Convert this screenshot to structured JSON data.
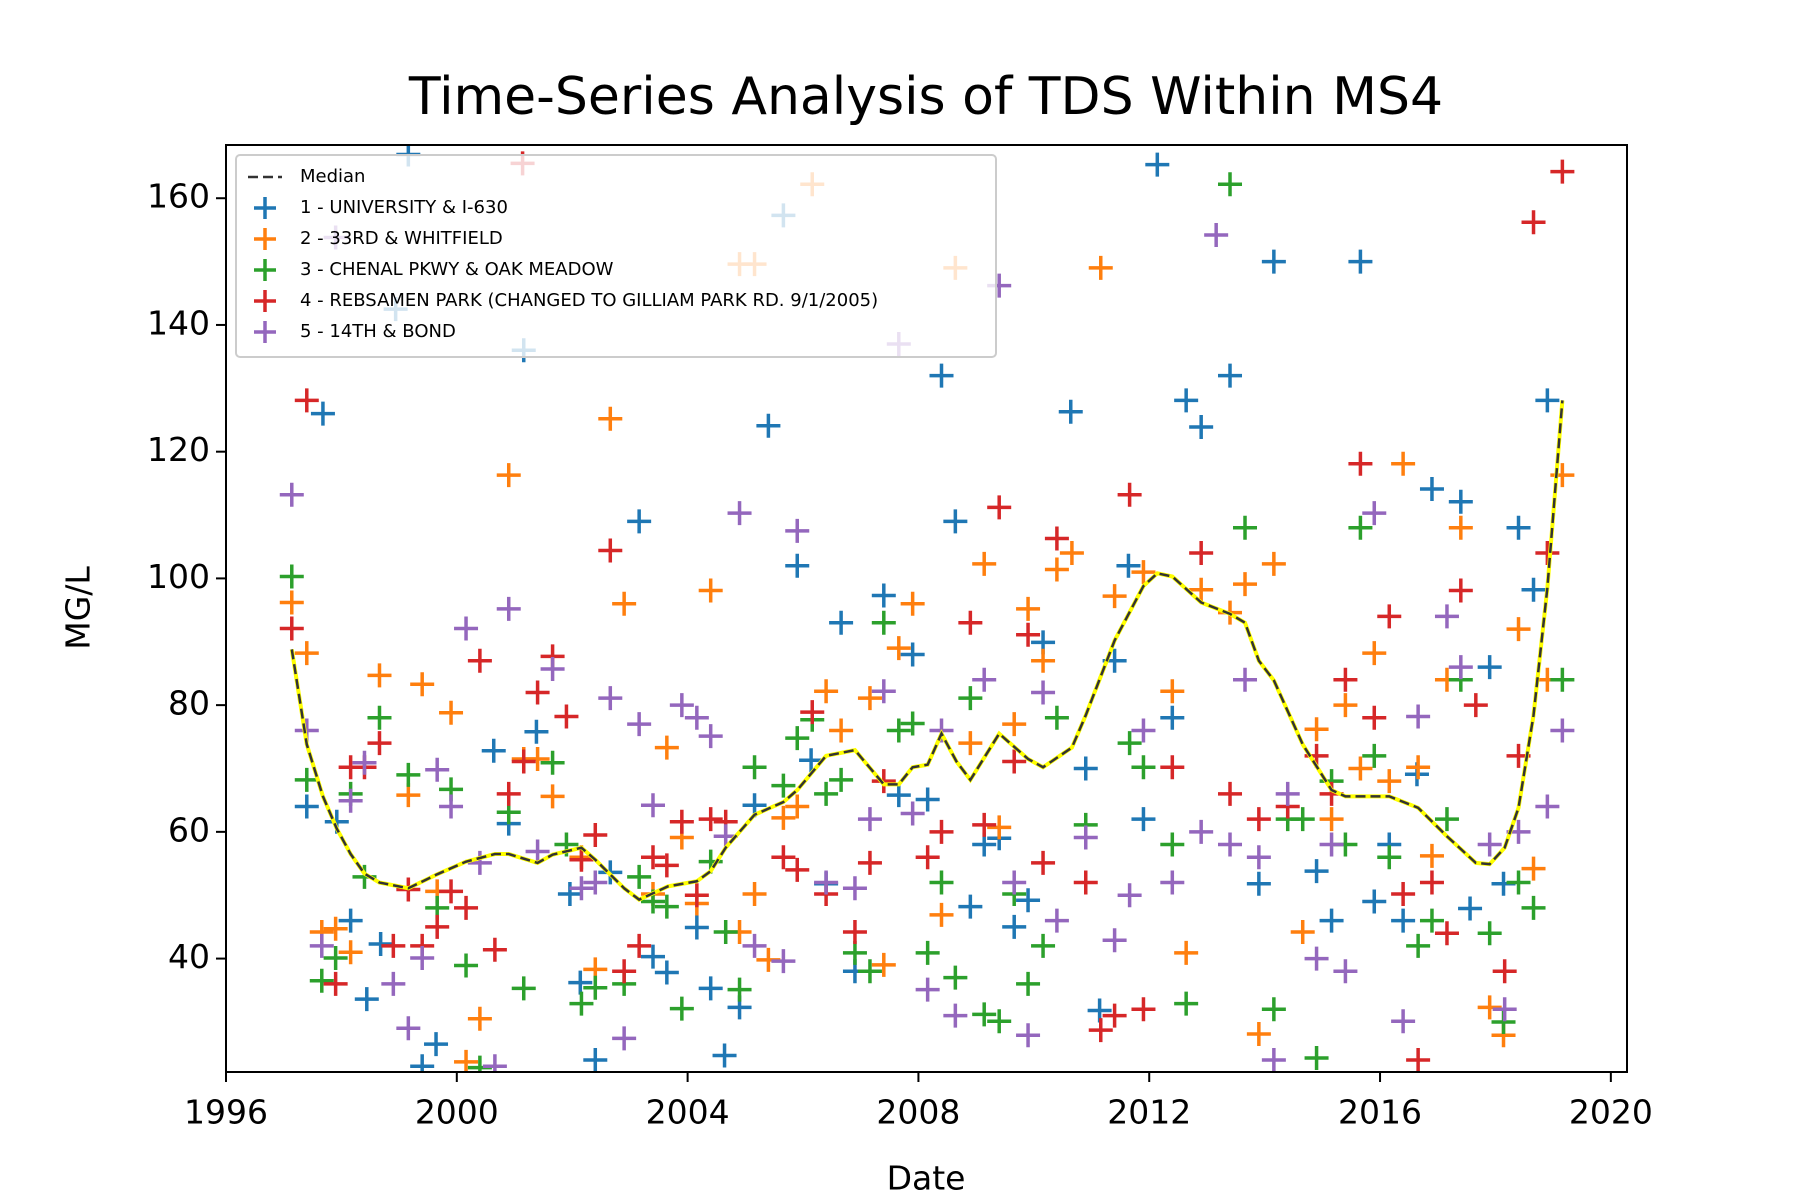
{
  "chart_data": {
    "type": "scatter",
    "title": "Time-Series Analysis of TDS Within MS4",
    "x_label": "Date",
    "y_label": "MG/L",
    "xlim": [
      1996,
      2020.28
    ],
    "ylim": [
      22.1,
      168.4
    ],
    "xticks": [
      1996,
      2000,
      2004,
      2008,
      2012,
      2016,
      2020
    ],
    "yticks": [
      40,
      60,
      80,
      100,
      120,
      140,
      160
    ],
    "legend": "upper left",
    "median": {
      "name": "Median",
      "color": "#333333",
      "highlight_color": "#ffff00",
      "x": [
        1997.14,
        1997.4,
        1997.68,
        1997.92,
        1998.16,
        1998.4,
        1998.66,
        1999.16,
        1999.66,
        2000.16,
        2000.66,
        2000.9,
        2001.4,
        2001.66,
        2002.16,
        2002.4,
        2002.9,
        2003.16,
        2003.66,
        2004.16,
        2004.4,
        2004.66,
        2005.16,
        2005.66,
        2005.9,
        2006.4,
        2006.9,
        2007.4,
        2007.66,
        2007.9,
        2008.16,
        2008.4,
        2008.66,
        2008.9,
        2009.4,
        2009.9,
        2010.16,
        2010.66,
        2010.9,
        2011.4,
        2011.9,
        2012.14,
        2012.4,
        2012.9,
        2013.4,
        2013.66,
        2013.9,
        2014.16,
        2014.66,
        2015.16,
        2015.4,
        2016.16,
        2016.66,
        2017.16,
        2017.66,
        2017.9,
        2018.16,
        2018.4,
        2018.66,
        2018.9,
        2019.16
      ],
      "values": [
        88.8,
        73.8,
        65.6,
        60.5,
        56.5,
        53.4,
        52,
        51.1,
        53.3,
        55.3,
        56.5,
        56.5,
        55.1,
        56.4,
        57.5,
        55.6,
        51.1,
        49.3,
        51.4,
        52.2,
        53.8,
        57.5,
        62.7,
        64.7,
        66.6,
        72,
        72.9,
        67.5,
        67.5,
        70.2,
        70.6,
        75.5,
        71.1,
        68.2,
        75.5,
        71.5,
        70.2,
        73.3,
        78.4,
        90.2,
        98.8,
        100.8,
        100.3,
        96.2,
        94.4,
        93,
        87,
        83.9,
        73.8,
        66.6,
        65.6,
        65.6,
        63.8,
        59.3,
        55.1,
        54.9,
        57.5,
        63.8,
        78.4,
        98.5,
        128.1
      ]
    },
    "series": [
      {
        "name": "1 - UNIVERSITY & I-630",
        "color": "#1f77b4",
        "x": [
          1997.4,
          1997.68,
          1997.92,
          1998.16,
          1998.44,
          1998.68,
          1998.94,
          1999.16,
          1999.4,
          1999.64,
          2000.64,
          2000.9,
          2001.16,
          2001.38,
          2001.96,
          2002.14,
          2002.4,
          2002.66,
          2003.16,
          2003.4,
          2003.64,
          2004.16,
          2004.4,
          2004.64,
          2004.9,
          2005.16,
          2005.4,
          2005.66,
          2005.9,
          2006.14,
          2006.4,
          2006.66,
          2006.9,
          2007.4,
          2007.66,
          2007.9,
          2008.16,
          2008.4,
          2008.64,
          2008.9,
          2009.14,
          2009.4,
          2009.66,
          2009.9,
          2010.16,
          2010.64,
          2010.9,
          2011.14,
          2011.4,
          2011.64,
          2011.9,
          2012.14,
          2012.4,
          2012.64,
          2012.9,
          2013.4,
          2013.9,
          2014.16,
          2014.9,
          2015.16,
          2015.66,
          2015.9,
          2016.16,
          2016.4,
          2016.64,
          2016.9,
          2017.4,
          2017.56,
          2017.9,
          2018.14,
          2018.4,
          2018.66,
          2018.9
        ],
        "values": [
          64,
          126,
          61.6,
          46,
          33.6,
          42.3,
          142.5,
          166.9,
          23,
          26.5,
          72.8,
          61.3,
          136,
          75.8,
          50.2,
          36.2,
          24,
          53.6,
          109,
          40.3,
          37.8,
          44.9,
          35.3,
          24.7,
          32.3,
          64.2,
          124.1,
          157.3,
          102,
          71.3,
          51.8,
          93,
          38,
          97.3,
          65.8,
          88,
          65.1,
          132,
          109,
          48.2,
          58,
          59,
          45,
          49.2,
          89.9,
          126.3,
          70,
          31.8,
          87,
          102,
          62,
          165.3,
          78,
          128.1,
          123.9,
          132,
          51.8,
          150,
          53.8,
          46,
          150,
          49,
          58,
          46,
          69.1,
          114.1,
          112.1,
          47.9,
          86,
          51.8,
          108,
          98.2,
          128.1
        ]
      },
      {
        "name": "2 - 33RD & WHITFIELD",
        "color": "#ff7f0e",
        "x": [
          1997.14,
          1997.4,
          1997.66,
          1997.9,
          1998.16,
          1998.66,
          1999.16,
          1999.4,
          1999.66,
          1999.9,
          2000.16,
          2000.4,
          2000.9,
          2001.16,
          2001.4,
          2001.66,
          2002.16,
          2002.4,
          2002.66,
          2002.9,
          2003.4,
          2003.64,
          2003.9,
          2004.16,
          2004.4,
          2004.9,
          2004.9,
          2005.16,
          2005.16,
          2005.4,
          2005.66,
          2005.9,
          2006.16,
          2006.4,
          2006.66,
          2007.16,
          2007.4,
          2007.66,
          2007.9,
          2008.4,
          2008.64,
          2008.9,
          2009.14,
          2009.4,
          2009.66,
          2009.9,
          2010.16,
          2010.4,
          2010.66,
          2011.16,
          2011.4,
          2011.9,
          2012.4,
          2012.64,
          2012.9,
          2013.4,
          2013.66,
          2013.9,
          2014.16,
          2014.66,
          2014.9,
          2015.16,
          2015.4,
          2015.66,
          2015.9,
          2016.16,
          2016.4,
          2016.66,
          2016.9,
          2017.16,
          2017.4,
          2017.9,
          2018.14,
          2018.4,
          2018.66,
          2018.9,
          2019.16
        ],
        "values": [
          96.2,
          88.2,
          44.2,
          44.7,
          41,
          84.7,
          65.8,
          83.3,
          50.6,
          78.8,
          23.7,
          30.5,
          116.3,
          71.5,
          71.5,
          65.6,
          56,
          38.3,
          125.2,
          96,
          50.2,
          73.3,
          59.1,
          48.7,
          98.1,
          44.2,
          149.6,
          50.2,
          149.6,
          39.8,
          62.2,
          64,
          162.2,
          82.2,
          76,
          81.1,
          39,
          89,
          96,
          46.9,
          149,
          74,
          102.3,
          60.7,
          77,
          95.2,
          87,
          101.4,
          104,
          149,
          97.2,
          101,
          82.2,
          40.9,
          98.2,
          94.6,
          99.1,
          28.1,
          102.3,
          44.2,
          76.2,
          62,
          80,
          70,
          88.2,
          68,
          118.1,
          70.2,
          56.2,
          84,
          108,
          32.3,
          27.9,
          92,
          54.2,
          84,
          116.3
        ]
      },
      {
        "name": "3 - CHENAL PKWY & OAK MEADOW",
        "color": "#2ca02c",
        "x": [
          1997.14,
          1997.4,
          1997.66,
          1997.9,
          1998.16,
          1998.4,
          1998.66,
          1999.16,
          1999.66,
          1999.9,
          2000.16,
          2000.4,
          2000.9,
          2001.16,
          2001.66,
          2001.9,
          2002.16,
          2002.4,
          2002.9,
          2003.16,
          2003.4,
          2003.64,
          2003.9,
          2004.4,
          2004.66,
          2004.9,
          2005.16,
          2005.66,
          2005.9,
          2006.16,
          2006.4,
          2006.66,
          2006.9,
          2007.16,
          2007.4,
          2007.66,
          2007.9,
          2008.16,
          2008.4,
          2008.64,
          2008.9,
          2009.14,
          2009.4,
          2009.66,
          2009.9,
          2010.16,
          2010.4,
          2010.9,
          2011.66,
          2011.9,
          2012.4,
          2012.64,
          2013.4,
          2013.66,
          2014.16,
          2014.4,
          2014.66,
          2014.9,
          2015.16,
          2015.4,
          2015.66,
          2015.9,
          2016.16,
          2016.66,
          2016.9,
          2017.16,
          2017.4,
          2017.9,
          2018.14,
          2018.4,
          2018.66,
          2019.16
        ],
        "values": [
          100.3,
          68.2,
          36.5,
          40.1,
          66,
          52.9,
          78,
          69,
          48,
          66.7,
          38.9,
          22.8,
          63.1,
          35.3,
          70.9,
          58,
          32.9,
          35.4,
          36,
          52.9,
          49,
          48.2,
          32.1,
          55.3,
          44.2,
          35.1,
          70.2,
          67.3,
          74.8,
          77.7,
          66,
          68.2,
          40.9,
          38,
          93,
          76,
          77.1,
          40.9,
          52,
          37,
          81.1,
          31.2,
          30.1,
          50.2,
          36,
          42,
          78,
          61.1,
          74,
          70.2,
          58,
          32.9,
          162.2,
          108,
          32,
          62,
          62,
          24.3,
          68,
          58,
          108,
          72,
          56,
          42,
          46,
          62,
          84,
          44,
          30,
          52,
          48,
          84
        ]
      },
      {
        "name": "4 - REBSAMEN PARK (CHANGED TO GILLIAM PARK RD. 9/1/2005)",
        "color": "#d62728",
        "x": [
          1997.14,
          1997.4,
          1997.9,
          1998.16,
          1998.4,
          1998.66,
          1998.9,
          1999.16,
          1999.4,
          1999.66,
          1999.9,
          2000.16,
          2000.4,
          2000.66,
          2000.9,
          2001.14,
          2001.16,
          2001.4,
          2001.66,
          2001.9,
          2002.16,
          2002.4,
          2002.66,
          2002.9,
          2003.16,
          2003.4,
          2003.64,
          2003.9,
          2004.16,
          2004.4,
          2004.66,
          2005.66,
          2005.9,
          2006.16,
          2006.4,
          2006.9,
          2007.16,
          2007.4,
          2008.16,
          2008.4,
          2008.9,
          2009.14,
          2009.4,
          2009.66,
          2009.9,
          2010.16,
          2010.4,
          2010.9,
          2011.16,
          2011.4,
          2011.66,
          2011.9,
          2012.4,
          2012.9,
          2013.4,
          2013.9,
          2014.4,
          2014.9,
          2015.16,
          2015.4,
          2015.66,
          2015.9,
          2016.16,
          2016.4,
          2016.66,
          2016.9,
          2017.16,
          2017.4,
          2017.66,
          2018.16,
          2018.4,
          2018.66,
          2018.9,
          2019.16
        ],
        "values": [
          92.1,
          128.1,
          36,
          70.2,
          70.2,
          74,
          42,
          50.9,
          42,
          45,
          50.6,
          48,
          87,
          41.4,
          66,
          165.5,
          71.1,
          82,
          87.7,
          78.2,
          55.6,
          59.5,
          104.4,
          38,
          42,
          56,
          54.7,
          61.6,
          50,
          62,
          61.6,
          56,
          54,
          78.9,
          50.2,
          44.2,
          55.1,
          68,
          56,
          60,
          93,
          61.1,
          111.2,
          71.1,
          91.1,
          55.1,
          106.3,
          52,
          28.7,
          31,
          113.2,
          32,
          70.2,
          104,
          66,
          62,
          64,
          72,
          66,
          84,
          118.1,
          78,
          94,
          50.2,
          24,
          52,
          44,
          98.1,
          80,
          38,
          72,
          156.2,
          104,
          164.2
        ]
      },
      {
        "name": "5 - 14TH & BOND",
        "color": "#9467bd",
        "x": [
          1997.14,
          1997.4,
          1997.66,
          1997.9,
          1998.16,
          1998.4,
          1998.9,
          1999.16,
          1999.4,
          1999.66,
          1999.9,
          2000.16,
          2000.4,
          2000.66,
          2000.9,
          2001.4,
          2001.66,
          2002.16,
          2002.4,
          2002.66,
          2002.9,
          2003.16,
          2003.4,
          2003.9,
          2004.16,
          2004.4,
          2004.66,
          2004.9,
          2005.16,
          2005.66,
          2005.9,
          2006.4,
          2006.9,
          2007.16,
          2007.4,
          2007.66,
          2007.9,
          2008.16,
          2008.4,
          2008.64,
          2009.14,
          2009.4,
          2009.66,
          2009.9,
          2010.16,
          2010.4,
          2010.9,
          2011.4,
          2011.66,
          2011.9,
          2012.4,
          2012.9,
          2013.16,
          2013.4,
          2013.66,
          2013.9,
          2014.16,
          2014.4,
          2014.9,
          2015.16,
          2015.4,
          2015.9,
          2016.4,
          2016.66,
          2017.16,
          2017.4,
          2017.9,
          2018.16,
          2018.4,
          2018.9,
          2019.16
        ],
        "values": [
          113.2,
          76,
          42,
          153.8,
          64.9,
          70.9,
          36,
          29,
          40.1,
          69.8,
          64,
          92.1,
          55.1,
          23,
          95.2,
          56.9,
          85.7,
          51.1,
          52,
          81.1,
          27.4,
          77,
          64.2,
          80,
          78,
          75.1,
          59.3,
          110.3,
          42,
          39.6,
          107.5,
          52,
          51.1,
          62,
          82.2,
          137,
          62.9,
          35.1,
          76,
          31,
          84,
          146.2,
          52,
          27.9,
          82,
          46,
          59.1,
          42.9,
          50,
          76,
          52,
          60,
          154.2,
          58,
          84,
          56,
          24,
          66,
          40,
          58,
          38,
          110.3,
          30.1,
          78.2,
          94,
          86,
          58,
          32,
          60,
          64,
          76
        ]
      }
    ]
  }
}
